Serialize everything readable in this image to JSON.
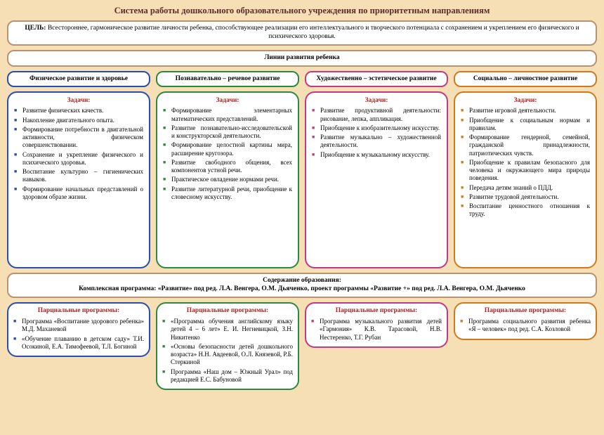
{
  "colors": {
    "page_bg": "#f6dfb4",
    "title_text": "#5a2d2d",
    "frame_border": "#b9936f",
    "heading_red": "#b02020",
    "col1": "#2a4db0",
    "col2": "#2c8a3c",
    "col3": "#c03a8a",
    "col4": "#d07a20"
  },
  "title": "Система работы дошкольного образовательного учреждения по приоритетным направлениям",
  "goal": {
    "label": "ЦЕЛЬ:",
    "text": "Всестороннее, гармоническое развитие личности ребенка, способствующее реализации его интеллектуального и творческого потенциала с сохранением и укреплением его физического и психического здоровья."
  },
  "lines_header": "Линии развития ребенка",
  "content_header": {
    "line1": "Содержание образования:",
    "line2": "Комплексная программа: «Развитие» под ред. Л.А. Венгера, О.М. Дьяченко, проект программы «Развитие +» под ред. Л.А. Венгера, О.М. Дьяченко"
  },
  "tasks_heading": "Задачи:",
  "partial_heading": "Парциальные программы:",
  "columns": [
    {
      "header": "Физическое развитие и здоровье",
      "tasks": [
        "Развитие физических качеств.",
        "Накопление двигательного опыта.",
        "Формирование потребности в двигательной активности, физическом совершенствовании.",
        "Сохранение и укрепление физического и психического здоровья.",
        "Воспитание культурно – гигиенических навыков.",
        "Формирование начальных представлений о здоровом образе жизни."
      ],
      "partial": [
        "Программа «Воспитание здорового ребенка» М.Д. Маханевой",
        "«Обучение плаванию в детском саду» Т.И. Осокиной, Е.А. Тимофеевой, Т.Л. Богиной"
      ]
    },
    {
      "header": "Познавательно – речевое развитие",
      "tasks": [
        "Формирование элементарных математических представлений.",
        "Развитие познавательно-исследовательской и конструкторской деятельности.",
        "Формирование целостной картины мира, расширение кругозора.",
        "Развитие свободного общения, всех компонентов устной речи.",
        "Практическое овладение нормами речи.",
        "Развитие литературной речи, приобщение к словесному искусству."
      ],
      "partial": [
        "«Программа обучения английскому языку детей 4 – 6 лет» Е. И. Негневицкой, З.Н. Никитенко",
        "«Основы безопасности детей дошкольного возраста» Н.Н. Авдеевой, О.Л. Князевой, Р.Б. Стеркиной",
        "Программа «Наш дом – Южный Урал» под редакцией Е.С. Бабуновой"
      ]
    },
    {
      "header": "Художественно – эстетическое развитие",
      "tasks": [
        "Развитие продуктивной деятельности: рисование, лепка, аппликация.",
        "Приобщение к изобразительному искусству.",
        "Развитие музыкально – художественной деятельности.",
        "Приобщение к музыкальному искусству."
      ],
      "partial": [
        "Программа музыкального развития детей «Гармония» К.В. Тарасовой, Н.В. Нестеренко, Т.Г. Рубан"
      ]
    },
    {
      "header": "Социально – личностное развитие",
      "tasks": [
        "Развитие игровой деятельности.",
        "Приобщение к социальным нормам и правилам.",
        "Формирование гендерной, семейной, гражданской принадлежности, патриотических чувств.",
        "Приобщение к правилам безопасного для человека и окружающего мира природы поведения.",
        "Передача детям знаний о ПДД.",
        "Развитие трудовой деятельности.",
        "Воспитание ценностного отношения к труду."
      ],
      "partial": [
        "Программа социального развития ребенка «Я – человек» под ред. С.А. Козловой"
      ]
    }
  ]
}
